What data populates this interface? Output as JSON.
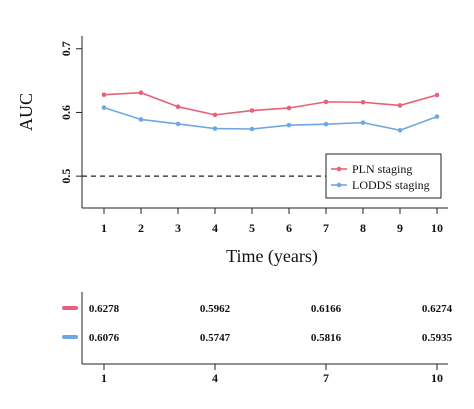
{
  "chart_data": {
    "type": "line",
    "title": "",
    "xlabel": "Time (years)",
    "ylabel": "AUC",
    "x": [
      1,
      2,
      3,
      4,
      5,
      6,
      7,
      8,
      9,
      10
    ],
    "xlim": [
      1,
      10
    ],
    "ylim": [
      0.45,
      0.72
    ],
    "yticks": [
      0.5,
      0.6,
      0.7
    ],
    "ytick_labels": [
      "0.5",
      "0.6",
      "0.7"
    ],
    "grid": false,
    "legend_position": "bottom-right",
    "reference_line": {
      "y": 0.5,
      "style": "dashed"
    },
    "series": [
      {
        "name": "PLN staging",
        "color": "#e8607a",
        "values": [
          0.6278,
          0.631,
          0.609,
          0.5962,
          0.603,
          0.607,
          0.6166,
          0.616,
          0.611,
          0.6274
        ]
      },
      {
        "name": "LODDS staging",
        "color": "#6fa8e0",
        "values": [
          0.6076,
          0.589,
          0.582,
          0.5747,
          0.574,
          0.58,
          0.5816,
          0.584,
          0.572,
          0.5935
        ]
      }
    ],
    "table": {
      "x_ticks": [
        "1",
        "4",
        "7",
        "10"
      ],
      "rows": [
        {
          "series": "PLN staging",
          "color": "#e8607a",
          "values": [
            "0.6278",
            "0.5962",
            "0.6166",
            "0.6274"
          ]
        },
        {
          "series": "LODDS staging",
          "color": "#6fa8e0",
          "values": [
            "0.6076",
            "0.5747",
            "0.5816",
            "0.5935"
          ]
        }
      ]
    }
  }
}
